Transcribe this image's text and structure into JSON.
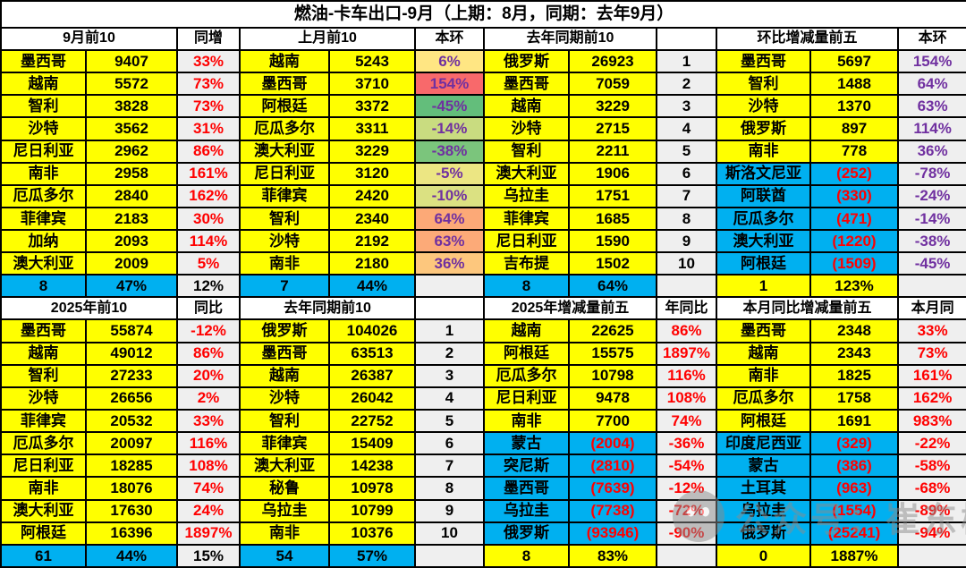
{
  "title": "燃油-卡车出口-9月（上期：8月，同期：去年9月）",
  "colors": {
    "row_yellow": "#FFFF00",
    "row_blue": "#00B0F0",
    "neg_red": "#FF0000",
    "pct_purple": "#7030A0",
    "metric_gray": "#EFEFEF",
    "border_black": "#000000"
  },
  "watermark": {
    "icon": "wechat-logo",
    "text": "公众号：崔东树"
  },
  "top": {
    "groups": [
      {
        "header": "9月前10",
        "metric_header": "同增",
        "metric_fg": "#FF0000",
        "summary_bg": "#00B0F0",
        "rows": [
          {
            "c": "墨西哥",
            "v": "9407",
            "m": "33%"
          },
          {
            "c": "越南",
            "v": "5572",
            "m": "73%"
          },
          {
            "c": "智利",
            "v": "3828",
            "m": "73%"
          },
          {
            "c": "沙特",
            "v": "3562",
            "m": "31%"
          },
          {
            "c": "尼日利亚",
            "v": "2962",
            "m": "86%"
          },
          {
            "c": "南非",
            "v": "2958",
            "m": "161%"
          },
          {
            "c": "厄瓜多尔",
            "v": "2840",
            "m": "162%"
          },
          {
            "c": "菲律宾",
            "v": "2183",
            "m": "30%"
          },
          {
            "c": "加纳",
            "v": "2093",
            "m": "114%"
          },
          {
            "c": "澳大利亚",
            "v": "2009",
            "m": "5%"
          }
        ],
        "summary": {
          "c": "8",
          "v": "47%",
          "m": "12%"
        }
      },
      {
        "header": "上月前10",
        "metric_header": "本环",
        "metric_fg": "#7030A0",
        "summary_bg": "#00B0F0",
        "rows": [
          {
            "c": "越南",
            "v": "5243",
            "m": "6%",
            "m_bg": "#FFE683"
          },
          {
            "c": "墨西哥",
            "v": "3710",
            "m": "154%",
            "m_bg": "#F8696B"
          },
          {
            "c": "阿根廷",
            "v": "3372",
            "m": "-45%",
            "m_bg": "#63BE7B"
          },
          {
            "c": "厄瓜多尔",
            "v": "3311",
            "m": "-14%",
            "m_bg": "#C9DC80"
          },
          {
            "c": "澳大利亚",
            "v": "3229",
            "m": "-38%",
            "m_bg": "#7BC57C"
          },
          {
            "c": "尼日利亚",
            "v": "3120",
            "m": "-5%",
            "m_bg": "#ECE683"
          },
          {
            "c": "菲律宾",
            "v": "2420",
            "m": "-10%",
            "m_bg": "#DBE182"
          },
          {
            "c": "智利",
            "v": "2340",
            "m": "64%",
            "m_bg": "#FCA977"
          },
          {
            "c": "沙特",
            "v": "2192",
            "m": "63%",
            "m_bg": "#FCAA78"
          },
          {
            "c": "南非",
            "v": "2180",
            "m": "36%",
            "m_bg": "#FDC77D"
          }
        ],
        "summary": {
          "c": "7",
          "v": "44%",
          "m": ""
        }
      },
      {
        "header": "去年同期前10",
        "metric_header": "",
        "metric_fg": "#000000",
        "summary_bg": "#00B0F0",
        "rows": [
          {
            "c": "俄罗斯",
            "v": "26923",
            "m": "1"
          },
          {
            "c": "墨西哥",
            "v": "7059",
            "m": "2"
          },
          {
            "c": "越南",
            "v": "3229",
            "m": "3"
          },
          {
            "c": "沙特",
            "v": "2715",
            "m": "4"
          },
          {
            "c": "智利",
            "v": "2211",
            "m": "5"
          },
          {
            "c": "澳大利亚",
            "v": "1906",
            "m": "6"
          },
          {
            "c": "乌拉圭",
            "v": "1751",
            "m": "7"
          },
          {
            "c": "菲律宾",
            "v": "1685",
            "m": "8"
          },
          {
            "c": "尼日利亚",
            "v": "1590",
            "m": "9"
          },
          {
            "c": "吉布提",
            "v": "1502",
            "m": "10"
          }
        ],
        "summary": {
          "c": "8",
          "v": "64%",
          "m": ""
        }
      },
      {
        "header": "环比增减量前五",
        "metric_header": "本环",
        "metric_fg": "#7030A0",
        "summary_bg": "#FFFF00",
        "rows": [
          {
            "c": "墨西哥",
            "v": "5697",
            "m": "154%"
          },
          {
            "c": "智利",
            "v": "1488",
            "m": "64%"
          },
          {
            "c": "沙特",
            "v": "1370",
            "m": "63%"
          },
          {
            "c": "俄罗斯",
            "v": "897",
            "m": "114%"
          },
          {
            "c": "南非",
            "v": "778",
            "m": "36%"
          },
          {
            "c": "斯洛文尼亚",
            "v": "(252)",
            "m": "-78%",
            "neg": true
          },
          {
            "c": "阿联酋",
            "v": "(330)",
            "m": "-24%",
            "neg": true
          },
          {
            "c": "厄瓜多尔",
            "v": "(471)",
            "m": "-14%",
            "neg": true
          },
          {
            "c": "澳大利亚",
            "v": "(1220)",
            "m": "-38%",
            "neg": true
          },
          {
            "c": "阿根廷",
            "v": "(1509)",
            "m": "-45%",
            "neg": true
          }
        ],
        "summary": {
          "c": "1",
          "v": "123%",
          "m": ""
        }
      }
    ]
  },
  "bottom": {
    "groups": [
      {
        "header": "2025年前10",
        "metric_header": "同比",
        "metric_fg": "#FF0000",
        "summary_bg": "#00B0F0",
        "rows": [
          {
            "c": "墨西哥",
            "v": "55874",
            "m": "-12%"
          },
          {
            "c": "越南",
            "v": "49012",
            "m": "86%"
          },
          {
            "c": "智利",
            "v": "27233",
            "m": "20%"
          },
          {
            "c": "沙特",
            "v": "26656",
            "m": "2%"
          },
          {
            "c": "菲律宾",
            "v": "20532",
            "m": "33%"
          },
          {
            "c": "厄瓜多尔",
            "v": "20097",
            "m": "116%"
          },
          {
            "c": "尼日利亚",
            "v": "18285",
            "m": "108%"
          },
          {
            "c": "南非",
            "v": "18076",
            "m": "74%"
          },
          {
            "c": "澳大利亚",
            "v": "17630",
            "m": "24%"
          },
          {
            "c": "阿根廷",
            "v": "16396",
            "m": "1897%"
          }
        ],
        "summary": {
          "c": "61",
          "v": "44%",
          "m": "15%"
        }
      },
      {
        "header": "去年同期前10",
        "metric_header": "",
        "metric_fg": "#000000",
        "summary_bg": "#00B0F0",
        "rows": [
          {
            "c": "俄罗斯",
            "v": "104026",
            "m": "1"
          },
          {
            "c": "墨西哥",
            "v": "63513",
            "m": "2"
          },
          {
            "c": "越南",
            "v": "26387",
            "m": "3"
          },
          {
            "c": "沙特",
            "v": "26042",
            "m": "4"
          },
          {
            "c": "智利",
            "v": "22752",
            "m": "5"
          },
          {
            "c": "菲律宾",
            "v": "15409",
            "m": "6"
          },
          {
            "c": "澳大利亚",
            "v": "14238",
            "m": "7"
          },
          {
            "c": "秘鲁",
            "v": "10978",
            "m": "8"
          },
          {
            "c": "乌拉圭",
            "v": "10799",
            "m": "9"
          },
          {
            "c": "南非",
            "v": "10376",
            "m": "10"
          }
        ],
        "summary": {
          "c": "54",
          "v": "57%",
          "m": ""
        }
      },
      {
        "header": "2025年增减量前五",
        "metric_header": "年同比",
        "metric_fg": "#FF0000",
        "summary_bg": "#FFFF00",
        "rows": [
          {
            "c": "越南",
            "v": "22625",
            "m": "86%"
          },
          {
            "c": "阿根廷",
            "v": "15575",
            "m": "1897%"
          },
          {
            "c": "厄瓜多尔",
            "v": "10798",
            "m": "116%"
          },
          {
            "c": "尼日利亚",
            "v": "9478",
            "m": "108%"
          },
          {
            "c": "南非",
            "v": "7700",
            "m": "74%"
          },
          {
            "c": "蒙古",
            "v": "(2004)",
            "m": "-36%",
            "neg": true
          },
          {
            "c": "突尼斯",
            "v": "(2810)",
            "m": "-54%",
            "neg": true
          },
          {
            "c": "墨西哥",
            "v": "(7639)",
            "m": "-12%",
            "neg": true
          },
          {
            "c": "乌拉圭",
            "v": "(7738)",
            "m": "-72%",
            "neg": true
          },
          {
            "c": "俄罗斯",
            "v": "(93946)",
            "m": "-90%",
            "neg": true
          }
        ],
        "summary": {
          "c": "8",
          "v": "83%",
          "m": ""
        }
      },
      {
        "header": "本月同比增减量前五",
        "metric_header": "本月同",
        "metric_fg": "#FF0000",
        "summary_bg": "#FFFF00",
        "rows": [
          {
            "c": "墨西哥",
            "v": "2348",
            "m": "33%"
          },
          {
            "c": "越南",
            "v": "2343",
            "m": "73%"
          },
          {
            "c": "南非",
            "v": "1825",
            "m": "161%"
          },
          {
            "c": "厄瓜多尔",
            "v": "1758",
            "m": "162%"
          },
          {
            "c": "阿根廷",
            "v": "1691",
            "m": "983%"
          },
          {
            "c": "印度尼西亚",
            "v": "(329)",
            "m": "-22%",
            "neg": true
          },
          {
            "c": "蒙古",
            "v": "(386)",
            "m": "-58%",
            "neg": true
          },
          {
            "c": "土耳其",
            "v": "(963)",
            "m": "-68%",
            "neg": true
          },
          {
            "c": "乌拉圭",
            "v": "(1554)",
            "m": "-89%",
            "neg": true
          },
          {
            "c": "俄罗斯",
            "v": "(25241)",
            "m": "-94%",
            "neg": true
          }
        ],
        "summary": {
          "c": "0",
          "v": "1887%",
          "m": ""
        }
      }
    ]
  }
}
